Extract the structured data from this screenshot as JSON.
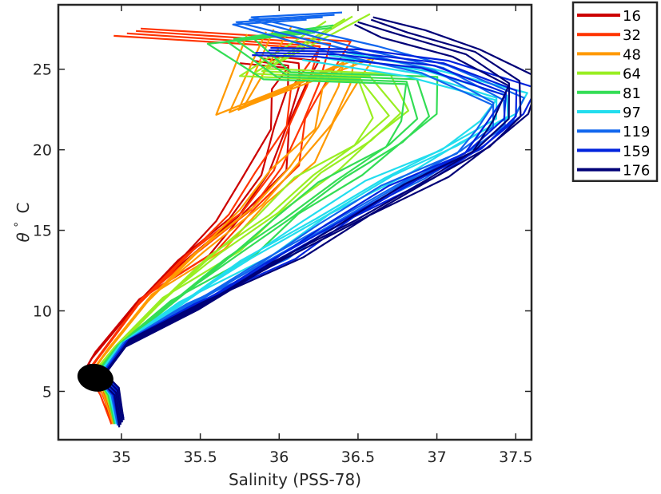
{
  "chart_data": {
    "type": "line",
    "title": "",
    "xlabel": "Salinity (PSS-78)",
    "ylabel_symbol": "θ",
    "ylabel_unit": "C",
    "xlim": [
      34.6,
      37.6
    ],
    "ylim": [
      2.0,
      29.0
    ],
    "xticks": [
      {
        "value": 35,
        "label": "35"
      },
      {
        "value": 35.5,
        "label": "35.5"
      },
      {
        "value": 36,
        "label": "36"
      },
      {
        "value": 36.5,
        "label": "36.5"
      },
      {
        "value": 37,
        "label": "37"
      },
      {
        "value": 37.5,
        "label": "37.5"
      }
    ],
    "yticks": [
      {
        "value": 5,
        "label": "5"
      },
      {
        "value": 10,
        "label": "10"
      },
      {
        "value": 15,
        "label": "15"
      },
      {
        "value": 20,
        "label": "20"
      },
      {
        "value": 25,
        "label": "25"
      }
    ],
    "grid": false,
    "legend_position": "outside-right-top",
    "series": [
      {
        "name": "16",
        "color": "#cc0000",
        "points": [
          [
            34.95,
            3.2
          ],
          [
            34.9,
            5.0
          ],
          [
            34.78,
            6.5
          ],
          [
            34.82,
            7.2
          ],
          [
            35.1,
            10.5
          ],
          [
            35.4,
            13.2
          ],
          [
            35.7,
            15.8
          ],
          [
            35.92,
            18.5
          ],
          [
            36.02,
            21.5
          ],
          [
            36.08,
            24.0
          ],
          [
            36.1,
            25.3
          ],
          [
            35.85,
            25.6
          ]
        ]
      },
      {
        "name": "32",
        "color": "#ff3300",
        "points": [
          [
            34.95,
            3.2
          ],
          [
            34.88,
            5.0
          ],
          [
            34.8,
            6.4
          ],
          [
            34.86,
            7.2
          ],
          [
            35.12,
            10.6
          ],
          [
            35.45,
            13.5
          ],
          [
            35.78,
            16.2
          ],
          [
            36.0,
            18.8
          ],
          [
            36.12,
            21.7
          ],
          [
            36.2,
            24.0
          ],
          [
            36.3,
            26.5
          ],
          [
            35.05,
            27.3
          ]
        ]
      },
      {
        "name": "48",
        "color": "#ff9900",
        "points": [
          [
            34.96,
            3.2
          ],
          [
            34.9,
            5.0
          ],
          [
            34.82,
            6.3
          ],
          [
            34.9,
            7.4
          ],
          [
            35.18,
            10.8
          ],
          [
            35.5,
            13.6
          ],
          [
            35.85,
            16.5
          ],
          [
            36.1,
            19.0
          ],
          [
            36.3,
            21.5
          ],
          [
            36.4,
            24.0
          ],
          [
            36.45,
            25.5
          ],
          [
            35.7,
            22.4
          ],
          [
            35.95,
            27.4
          ]
        ]
      },
      {
        "name": "64",
        "color": "#99ee22",
        "points": [
          [
            34.97,
            3.2
          ],
          [
            34.92,
            5.0
          ],
          [
            34.84,
            6.3
          ],
          [
            34.94,
            7.5
          ],
          [
            35.25,
            10.6
          ],
          [
            35.6,
            13.5
          ],
          [
            35.95,
            16.0
          ],
          [
            36.25,
            18.5
          ],
          [
            36.55,
            20.5
          ],
          [
            36.72,
            22.2
          ],
          [
            36.55,
            24.5
          ],
          [
            35.85,
            24.8
          ],
          [
            36.45,
            28.2
          ]
        ]
      },
      {
        "name": "81",
        "color": "#33dd55",
        "points": [
          [
            34.97,
            3.2
          ],
          [
            34.93,
            5.0
          ],
          [
            34.85,
            6.2
          ],
          [
            34.96,
            7.6
          ],
          [
            35.3,
            10.4
          ],
          [
            35.7,
            13.3
          ],
          [
            36.05,
            15.8
          ],
          [
            36.4,
            18.2
          ],
          [
            36.75,
            20.4
          ],
          [
            36.9,
            22.0
          ],
          [
            36.85,
            24.3
          ],
          [
            36.0,
            24.6
          ],
          [
            35.7,
            26.8
          ],
          [
            36.3,
            27.5
          ]
        ]
      },
      {
        "name": "97",
        "color": "#22ddee",
        "points": [
          [
            34.98,
            3.2
          ],
          [
            34.94,
            5.0
          ],
          [
            34.86,
            6.1
          ],
          [
            34.98,
            7.7
          ],
          [
            35.35,
            10.3
          ],
          [
            35.8,
            13.2
          ],
          [
            36.25,
            15.8
          ],
          [
            36.7,
            18.3
          ],
          [
            37.1,
            20.2
          ],
          [
            37.4,
            22.0
          ],
          [
            37.42,
            23.3
          ],
          [
            36.9,
            24.8
          ],
          [
            36.3,
            25.8
          ]
        ]
      },
      {
        "name": "119",
        "color": "#1166ee",
        "points": [
          [
            34.99,
            3.1
          ],
          [
            34.95,
            5.0
          ],
          [
            34.87,
            6.0
          ],
          [
            35.0,
            7.8
          ],
          [
            35.4,
            10.2
          ],
          [
            35.9,
            13.0
          ],
          [
            36.35,
            15.6
          ],
          [
            36.8,
            18.0
          ],
          [
            37.2,
            20.0
          ],
          [
            37.38,
            21.5
          ],
          [
            37.4,
            23.0
          ],
          [
            37.0,
            25.0
          ],
          [
            36.5,
            26.2
          ],
          [
            35.78,
            28.0
          ],
          [
            36.3,
            28.3
          ]
        ]
      },
      {
        "name": "159",
        "color": "#0022dd",
        "points": [
          [
            35.0,
            3.1
          ],
          [
            34.96,
            5.0
          ],
          [
            34.88,
            6.0
          ],
          [
            35.02,
            7.9
          ],
          [
            35.45,
            10.2
          ],
          [
            35.95,
            13.0
          ],
          [
            36.4,
            15.6
          ],
          [
            36.85,
            18.0
          ],
          [
            37.25,
            20.0
          ],
          [
            37.45,
            22.0
          ],
          [
            37.48,
            23.6
          ],
          [
            37.0,
            25.3
          ],
          [
            36.4,
            26.0
          ],
          [
            35.9,
            26.1
          ]
        ]
      },
      {
        "name": "176",
        "color": "#000077",
        "points": [
          [
            35.0,
            3.0
          ],
          [
            34.97,
            5.0
          ],
          [
            34.88,
            5.9
          ],
          [
            35.04,
            8.0
          ],
          [
            35.5,
            10.3
          ],
          [
            36.0,
            13.1
          ],
          [
            36.5,
            15.7
          ],
          [
            36.95,
            18.1
          ],
          [
            37.3,
            20.1
          ],
          [
            37.48,
            22.0
          ],
          [
            37.5,
            24.2
          ],
          [
            37.2,
            26.0
          ],
          [
            36.8,
            27.2
          ],
          [
            36.55,
            28.0
          ]
        ]
      }
    ],
    "annotations": [
      {
        "label": "black cluster",
        "x_range": [
          34.72,
          34.95
        ],
        "y_range": [
          5.0,
          6.7
        ],
        "color": "#000000"
      }
    ]
  }
}
